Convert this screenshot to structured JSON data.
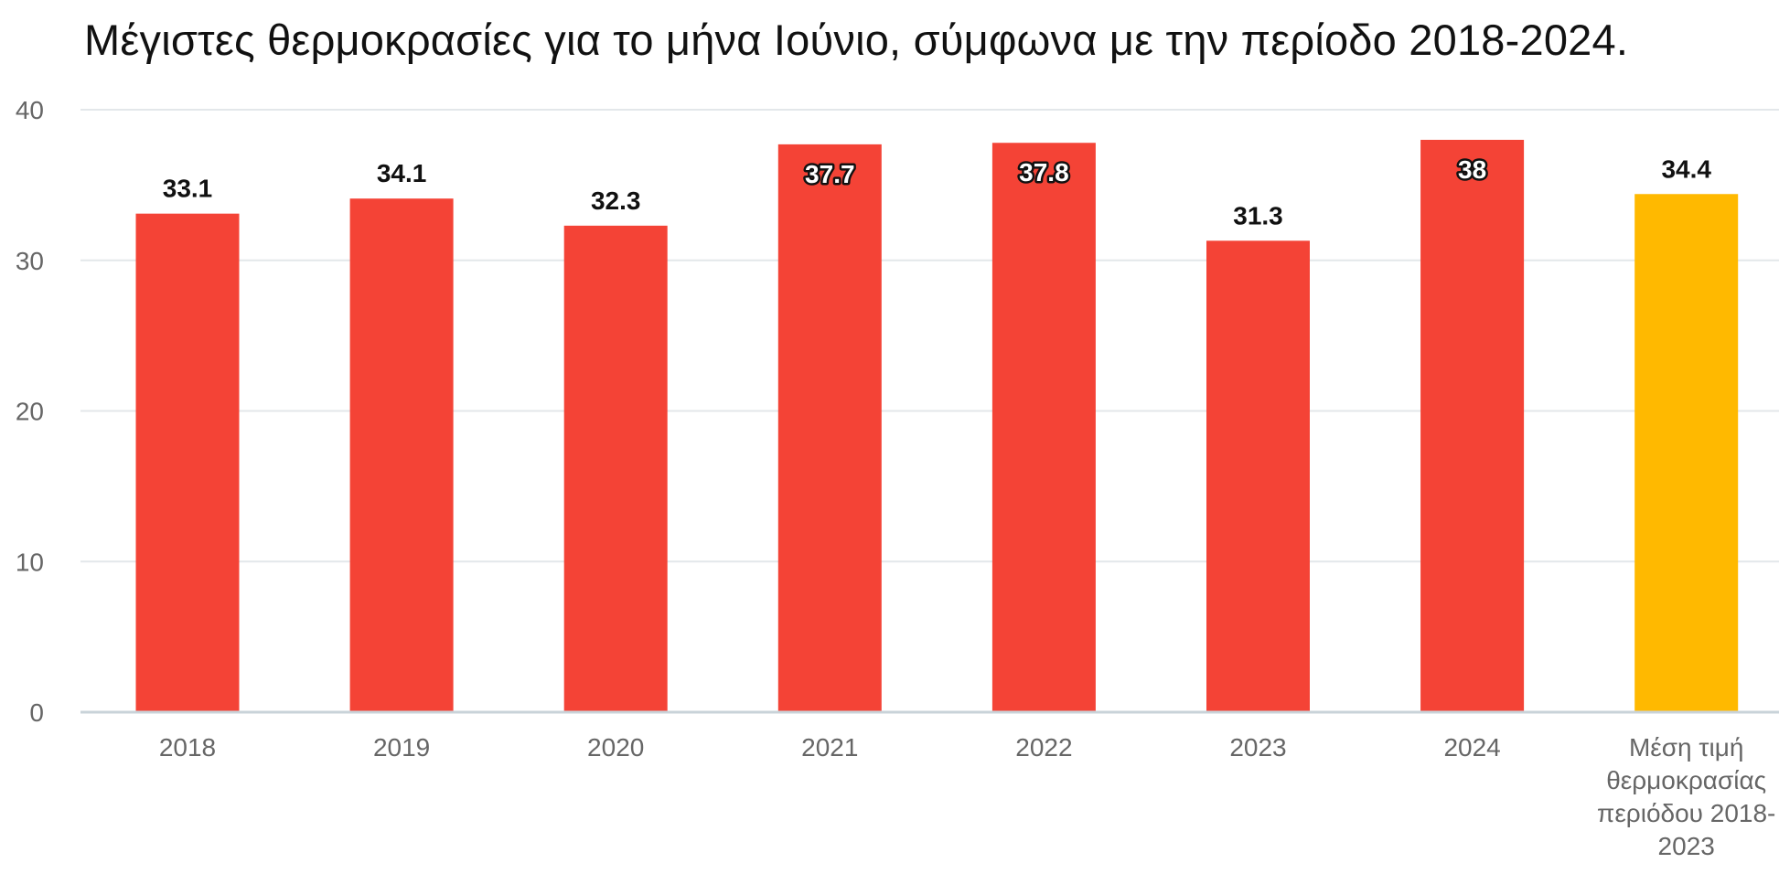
{
  "chart_data": {
    "type": "bar",
    "title": "Μέγιστες θερμοκρασίες για το μήνα Ιούνιο, σύμφωνα με την περίοδο 2018-2024.",
    "categories": [
      "2018",
      "2019",
      "2020",
      "2021",
      "2022",
      "2023",
      "2024",
      "Μέση τιμή θερμοκρασίας περιόδου 2018-2023"
    ],
    "category_label_lines": [
      [
        "2018"
      ],
      [
        "2019"
      ],
      [
        "2020"
      ],
      [
        "2021"
      ],
      [
        "2022"
      ],
      [
        "2023"
      ],
      [
        "2024"
      ],
      [
        "Μέση τιμή",
        "θερμοκρασίας",
        "περιόδου 2018-",
        "2023"
      ]
    ],
    "values": [
      33.1,
      34.1,
      32.3,
      37.7,
      37.8,
      31.3,
      38,
      34.4
    ],
    "data_labels": [
      "33.1",
      "34.1",
      "32.3",
      "37.7",
      "37.8",
      "31.3",
      "38",
      "34.4"
    ],
    "label_inside": [
      false,
      false,
      false,
      true,
      true,
      false,
      true,
      false
    ],
    "colors": [
      "#F44336",
      "#F44336",
      "#F44336",
      "#F44336",
      "#F44336",
      "#F44336",
      "#F44336",
      "#FFB900"
    ],
    "ylim": [
      0,
      40
    ],
    "yticks": [
      0,
      10,
      20,
      30,
      40
    ],
    "ytick_labels": [
      "0",
      "10",
      "20",
      "30",
      "40"
    ],
    "xlabel": "",
    "ylabel": "",
    "grid": true,
    "legend": "none"
  }
}
